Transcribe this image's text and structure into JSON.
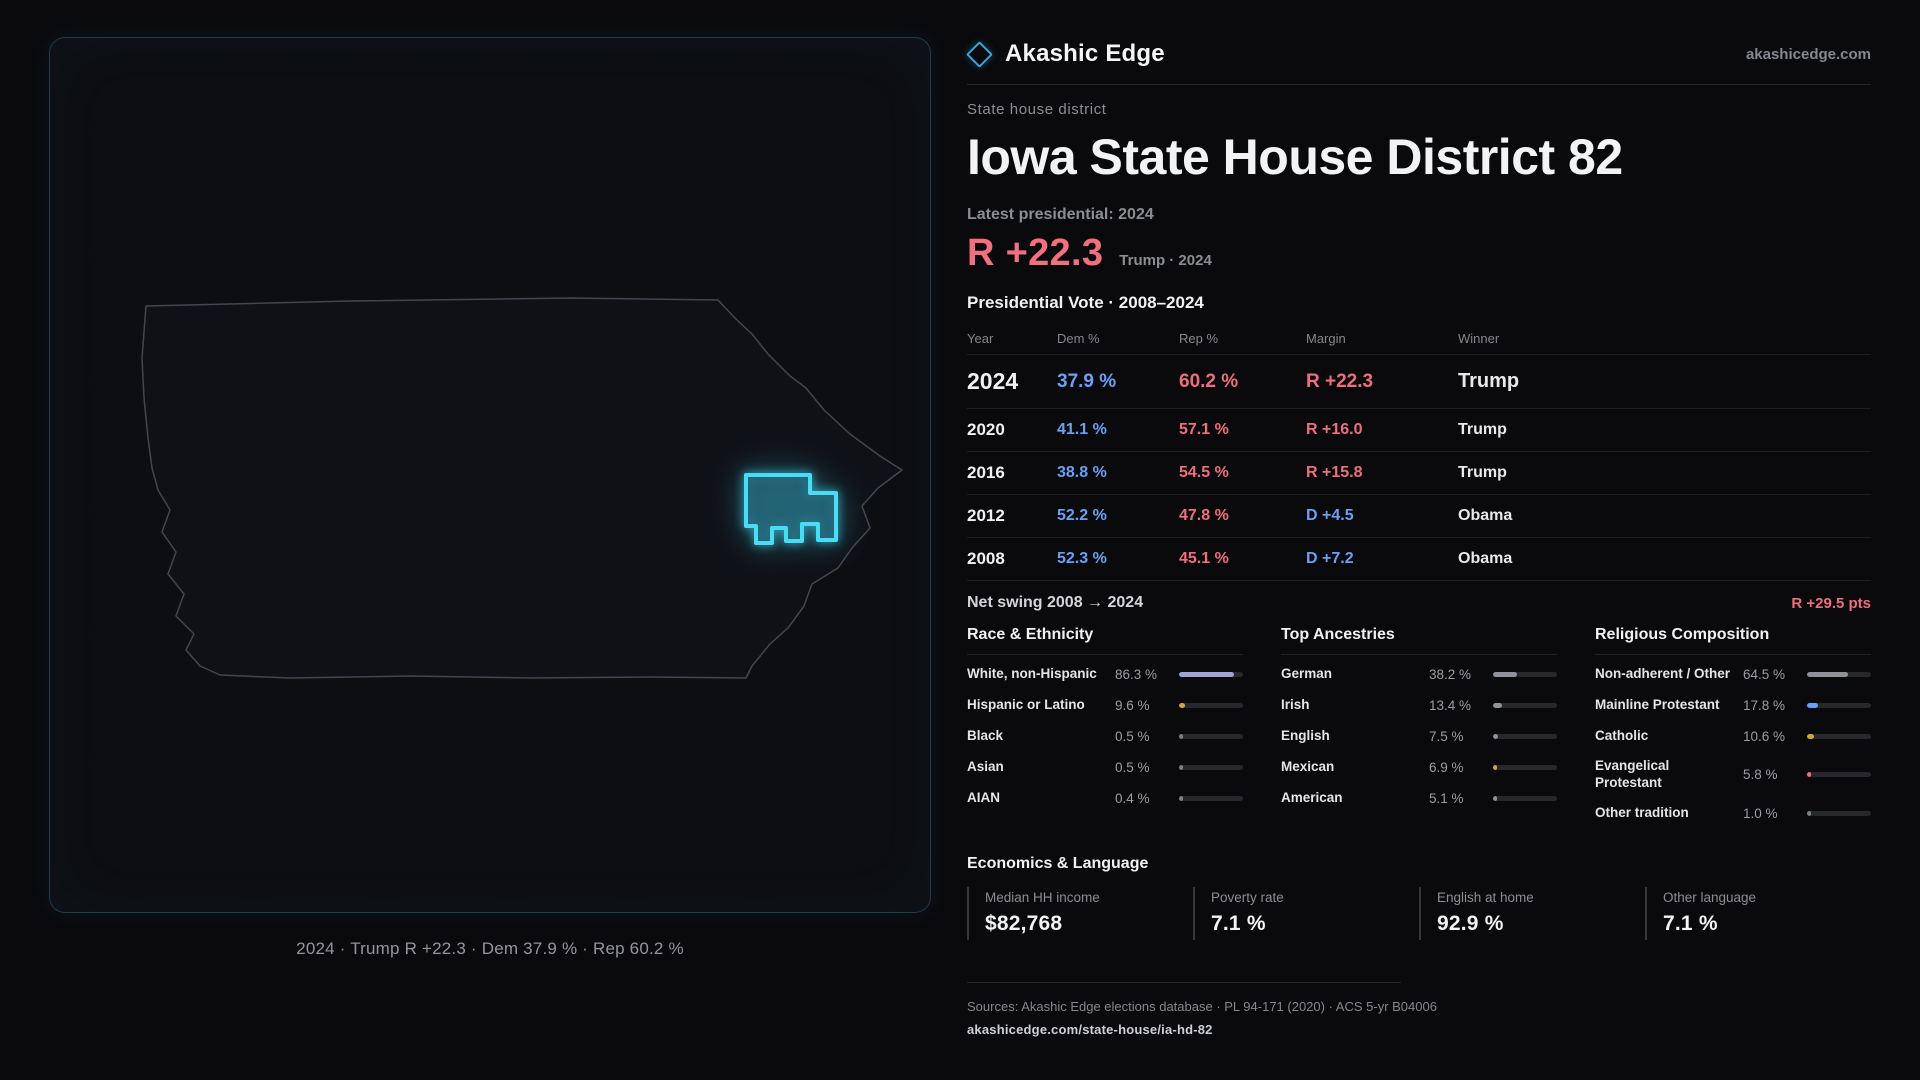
{
  "header": {
    "brand": "Akashic Edge",
    "site": "akashicedge.com",
    "kicker": "State house district",
    "title": "Iowa State House District 82"
  },
  "map": {
    "caption": "2024 · Trump R +22.3 · Dem 37.9 % · Rep 60.2 %",
    "accent_color": "#4adcf5"
  },
  "hero": {
    "label": "Latest presidential: 2024",
    "margin": "R +22.3",
    "note": "Trump · 2024",
    "margin_color": "#f0707f"
  },
  "vote_table": {
    "title": "Presidential Vote · 2008–2024",
    "columns": [
      "Year",
      "Dem %",
      "Rep %",
      "Margin",
      "Winner"
    ],
    "rows": [
      {
        "year": "2024",
        "dem": "37.9 %",
        "rep": "60.2 %",
        "margin": "R +22.3",
        "margin_party": "R",
        "winner": "Trump",
        "highlight": true
      },
      {
        "year": "2020",
        "dem": "41.1 %",
        "rep": "57.1 %",
        "margin": "R +16.0",
        "margin_party": "R",
        "winner": "Trump",
        "highlight": false
      },
      {
        "year": "2016",
        "dem": "38.8 %",
        "rep": "54.5 %",
        "margin": "R +15.8",
        "margin_party": "R",
        "winner": "Trump",
        "highlight": false
      },
      {
        "year": "2012",
        "dem": "52.2 %",
        "rep": "47.8 %",
        "margin": "D +4.5",
        "margin_party": "D",
        "winner": "Obama",
        "highlight": false
      },
      {
        "year": "2008",
        "dem": "52.3 %",
        "rep": "45.1 %",
        "margin": "D +7.2",
        "margin_party": "D",
        "winner": "Obama",
        "highlight": false
      }
    ],
    "dem_color": "#6aa0f5",
    "rep_color": "#ef6e7e"
  },
  "swing": {
    "label": "Net swing 2008 → 2024",
    "value": "R +29.5 pts"
  },
  "demographics": [
    {
      "title": "Race & Ethnicity",
      "items": [
        {
          "label": "White, non-Hispanic",
          "value": "86.3 %",
          "pct": 86.3,
          "color": "#9fa3d6"
        },
        {
          "label": "Hispanic or Latino",
          "value": "9.6 %",
          "pct": 9.6,
          "color": "#d2a53d"
        },
        {
          "label": "Black",
          "value": "0.5 %",
          "pct": 0.5,
          "color": "#7c8089"
        },
        {
          "label": "Asian",
          "value": "0.5 %",
          "pct": 0.5,
          "color": "#7c8089"
        },
        {
          "label": "AIAN",
          "value": "0.4 %",
          "pct": 0.4,
          "color": "#7c8089"
        }
      ]
    },
    {
      "title": "Top Ancestries",
      "items": [
        {
          "label": "German",
          "value": "38.2 %",
          "pct": 38.2,
          "color": "#8e929b"
        },
        {
          "label": "Irish",
          "value": "13.4 %",
          "pct": 13.4,
          "color": "#8e929b"
        },
        {
          "label": "English",
          "value": "7.5 %",
          "pct": 7.5,
          "color": "#8e929b"
        },
        {
          "label": "Mexican",
          "value": "6.9 %",
          "pct": 6.9,
          "color": "#d2a53d"
        },
        {
          "label": "American",
          "value": "5.1 %",
          "pct": 5.1,
          "color": "#8e929b"
        }
      ]
    },
    {
      "title": "Religious Composition",
      "items": [
        {
          "label": "Non-adherent / Other",
          "value": "64.5 %",
          "pct": 64.5,
          "color": "#8e929b"
        },
        {
          "label": "Mainline Protestant",
          "value": "17.8 %",
          "pct": 17.8,
          "color": "#6aa0f5"
        },
        {
          "label": "Catholic",
          "value": "10.6 %",
          "pct": 10.6,
          "color": "#d2a53d"
        },
        {
          "label": "Evangelical Protestant",
          "value": "5.8 %",
          "pct": 5.8,
          "color": "#ea7280"
        },
        {
          "label": "Other tradition",
          "value": "1.0 %",
          "pct": 1.0,
          "color": "#7c8089"
        }
      ]
    }
  ],
  "economics": {
    "title": "Economics & Language",
    "stats": [
      {
        "label": "Median HH income",
        "value": "$82,768"
      },
      {
        "label": "Poverty rate",
        "value": "7.1 %"
      },
      {
        "label": "English at home",
        "value": "92.9 %"
      },
      {
        "label": "Other language",
        "value": "7.1 %"
      }
    ]
  },
  "footer": {
    "sources": "Sources: Akashic Edge elections database · PL 94-171 (2020) · ACS 5-yr B04006",
    "permalink": "akashicedge.com/state-house/ia-hd-82"
  }
}
